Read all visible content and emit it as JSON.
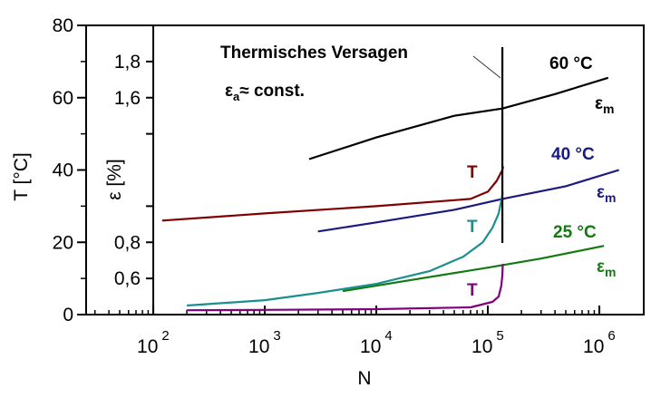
{
  "chart_data": {
    "type": "line",
    "x_scale": "log",
    "xlabel": "N",
    "x_ticks": [
      {
        "value": 100,
        "base": "10",
        "exp": "2"
      },
      {
        "value": 1000,
        "base": "10",
        "exp": "3"
      },
      {
        "value": 10000,
        "base": "10",
        "exp": "4"
      },
      {
        "value": 100000,
        "base": "10",
        "exp": "5"
      },
      {
        "value": 1000000,
        "base": "10",
        "exp": "6"
      }
    ],
    "xlim": [
      25,
      2500000
    ],
    "y_left": {
      "label": "T [°C]",
      "ticks": [
        "0",
        "20",
        "40",
        "60",
        "80"
      ],
      "ylim": [
        0,
        80
      ]
    },
    "y_inner": {
      "label": "ε [%]",
      "tick_labels": [
        {
          "text": "0,6",
          "at_T": 10
        },
        {
          "text": "0,8",
          "at_T": 20
        },
        {
          "text": "1,6",
          "at_T": 60
        },
        {
          "text": "1,8",
          "at_T": 70
        }
      ]
    },
    "annotations": {
      "failure_label": "Thermisches Versagen",
      "eps_a_symbol": "ε",
      "eps_a_sub": "a",
      "eps_a_rest": "≈ const.",
      "failure_N": 135000
    },
    "series": [
      {
        "name": "60 °C",
        "kind": "strain",
        "color": "#000000",
        "label": "60 °C",
        "curve_label": "ε",
        "curve_label_sub": "m",
        "x": [
          2500,
          10000,
          50000,
          135000,
          400000,
          1200000
        ],
        "y": [
          43,
          49,
          55,
          57,
          61,
          65.5
        ]
      },
      {
        "name": "40 °C",
        "kind": "strain",
        "color": "#1a1a80",
        "label": "40 °C",
        "curve_label": "ε",
        "curve_label_sub": "m",
        "x": [
          3000,
          10000,
          50000,
          135000,
          500000,
          1500000
        ],
        "y": [
          23,
          25.5,
          29,
          32,
          35.5,
          40
        ]
      },
      {
        "name": "25 °C",
        "kind": "strain",
        "color": "#137a13",
        "label": "25 °C",
        "curve_label": "ε",
        "curve_label_sub": "m",
        "x": [
          5000,
          20000,
          100000,
          300000,
          1100000
        ],
        "y": [
          6.5,
          9.5,
          13,
          15.5,
          19
        ]
      },
      {
        "name": "T (60 °C)",
        "kind": "temperature",
        "color": "#800000",
        "curve_label": "T",
        "x": [
          120,
          1000,
          10000,
          70000,
          100000,
          120000,
          135000,
          137000
        ],
        "y": [
          26,
          28,
          30,
          32,
          34,
          37,
          40,
          41
        ]
      },
      {
        "name": "T (40 °C)",
        "kind": "temperature",
        "color": "#1a8f8f",
        "curve_label": "T",
        "x": [
          200,
          1000,
          3000,
          10000,
          30000,
          60000,
          90000,
          110000,
          125000,
          133000,
          136000
        ],
        "y": [
          2.5,
          4,
          6,
          8.5,
          12,
          16,
          20,
          24,
          28,
          32,
          34
        ]
      },
      {
        "name": "T (25 °C)",
        "kind": "temperature",
        "color": "#800080",
        "curve_label": "T",
        "x": [
          200,
          1000,
          10000,
          70000,
          110000,
          125000,
          132000,
          135000,
          136000
        ],
        "y": [
          1.2,
          1.3,
          1.5,
          2,
          3.5,
          5,
          8,
          11,
          14
        ]
      }
    ]
  }
}
